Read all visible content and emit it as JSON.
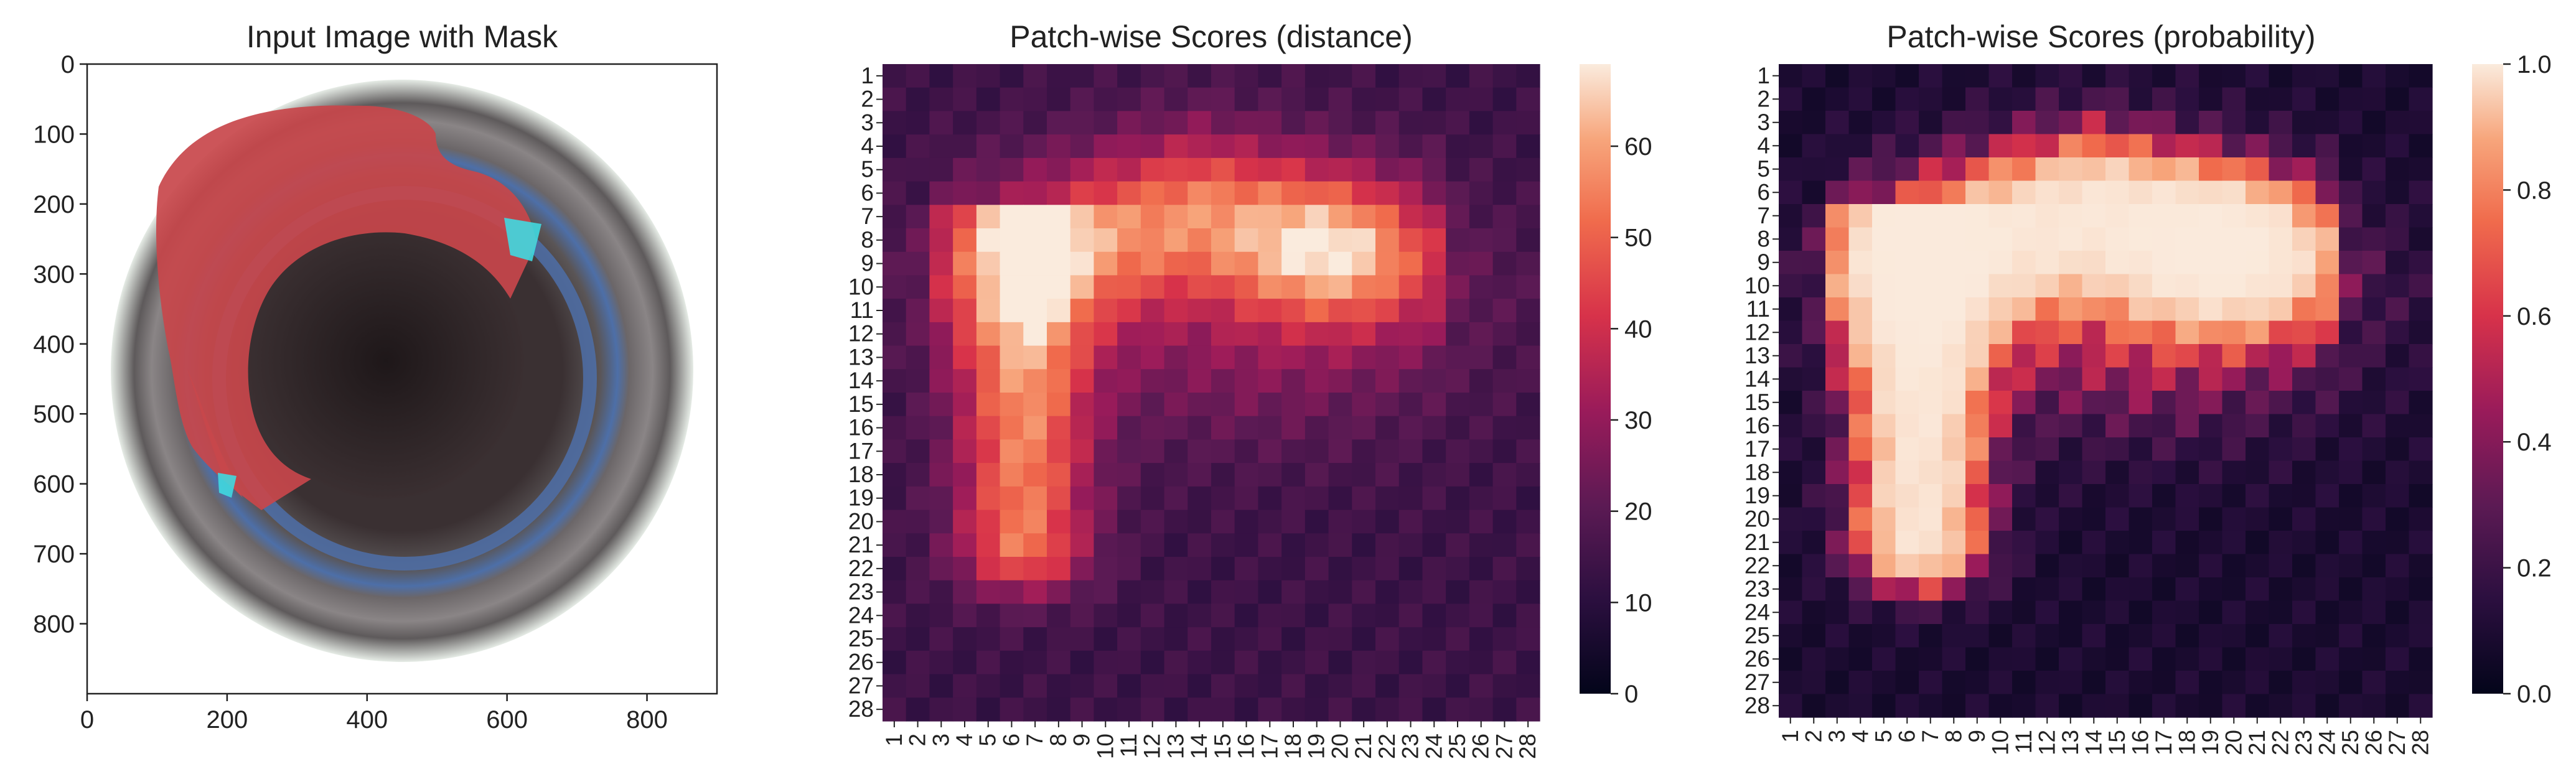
{
  "chart_data": [
    {
      "type": "image",
      "title": "Input Image with Mask",
      "xlim": [
        0,
        900
      ],
      "ylim": [
        900,
        0
      ],
      "xticks": [
        0,
        200,
        400,
        600,
        800
      ],
      "yticks": [
        0,
        100,
        200,
        300,
        400,
        500,
        600,
        700,
        800
      ],
      "image_description_colors": {
        "background": "#ffffff",
        "ring": "#4a4545",
        "blue_ring": "#4d6fa8",
        "center": "#2a2224",
        "mask": "#c8474b",
        "highlight": "#40d8e0"
      }
    },
    {
      "type": "heatmap",
      "title": "Patch-wise Scores (distance)",
      "rows": 28,
      "cols": 28,
      "tick_labels": [
        "1",
        "2",
        "3",
        "4",
        "5",
        "6",
        "7",
        "8",
        "9",
        "10",
        "11",
        "12",
        "13",
        "14",
        "15",
        "16",
        "17",
        "18",
        "19",
        "20",
        "21",
        "22",
        "23",
        "24",
        "25",
        "26",
        "27",
        "28"
      ],
      "colorbar": {
        "min": 0,
        "max": 69,
        "ticks": [
          0,
          10,
          20,
          30,
          40,
          50,
          60
        ]
      },
      "colormap": "rocket",
      "note_values": "values estimated per patch from color"
    },
    {
      "type": "heatmap",
      "title": "Patch-wise Scores (probability)",
      "rows": 28,
      "cols": 28,
      "tick_labels": [
        "1",
        "2",
        "3",
        "4",
        "5",
        "6",
        "7",
        "8",
        "9",
        "10",
        "11",
        "12",
        "13",
        "14",
        "15",
        "16",
        "17",
        "18",
        "19",
        "20",
        "21",
        "22",
        "23",
        "24",
        "25",
        "26",
        "27",
        "28"
      ],
      "colorbar": {
        "min": 0.0,
        "max": 1.0,
        "ticks": [
          "0.0",
          "0.2",
          "0.4",
          "0.6",
          "0.8",
          "1.0"
        ]
      },
      "colormap": "rocket"
    }
  ]
}
